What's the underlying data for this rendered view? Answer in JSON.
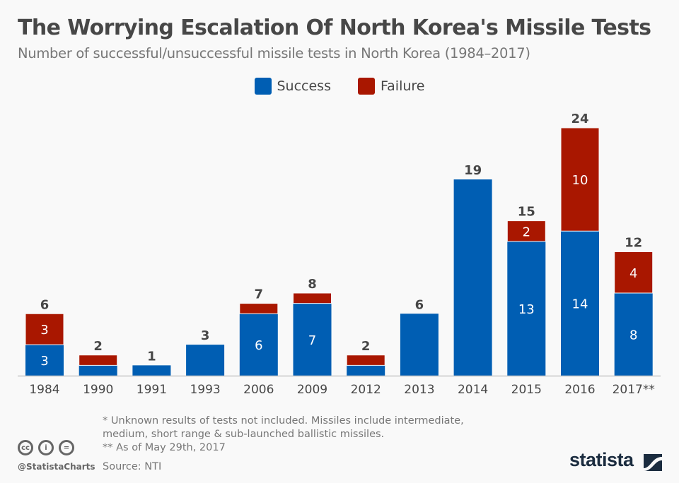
{
  "chart_data": {
    "type": "bar",
    "stacked": true,
    "title": "The Worrying Escalation Of North Korea's Missile Tests",
    "subtitle": "Number of successful/unsuccessful missile tests in North Korea (1984–2017)",
    "xlabel": "",
    "ylabel": "",
    "ylim": [
      0,
      24
    ],
    "grid": false,
    "legend_position": "top-center",
    "categories": [
      "1984",
      "1990",
      "1991",
      "1993",
      "2006",
      "2009",
      "2012",
      "2013",
      "2014",
      "2015",
      "2016",
      "2017**"
    ],
    "series": [
      {
        "name": "Success",
        "color": "#005eb3",
        "values": [
          3,
          1,
          1,
          3,
          6,
          7,
          1,
          6,
          19,
          13,
          14,
          8
        ],
        "labels": [
          "3",
          "",
          "",
          "",
          "6",
          "7",
          "",
          "",
          "",
          "13",
          "14",
          "8"
        ]
      },
      {
        "name": "Failure",
        "color": "#a91700",
        "values": [
          3,
          1,
          0,
          0,
          1,
          1,
          1,
          0,
          0,
          2,
          10,
          4
        ],
        "labels": [
          "3",
          "",
          "",
          "",
          "",
          "",
          "",
          "",
          "",
          "2",
          "10",
          "4"
        ]
      }
    ],
    "totals": [
      6,
      2,
      1,
      3,
      7,
      8,
      2,
      6,
      19,
      15,
      24,
      12
    ]
  },
  "legend": {
    "items": [
      {
        "label": "Success",
        "color": "#005eb3"
      },
      {
        "label": "Failure",
        "color": "#a91700"
      }
    ]
  },
  "footer": {
    "note1_line1": "*   Unknown results of tests not included. Missiles include intermediate,",
    "note1_line2": "     medium, short range & sub-launched ballistic missiles.",
    "note2": "** As of May 29th, 2017",
    "source": "Source: NTI",
    "handle": "@StatistaCharts",
    "cc_icons": [
      "cc",
      "i",
      "="
    ],
    "logo": "statista"
  }
}
